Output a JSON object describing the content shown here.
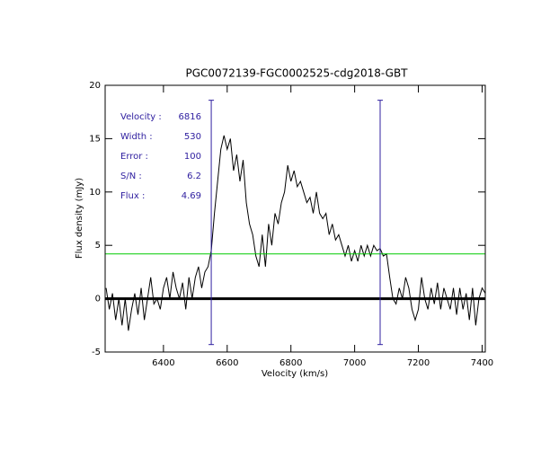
{
  "chart_data": {
    "type": "line",
    "title": "PGC0072139-FGC0002525-cdg2018-GBT",
    "xlabel": "Velocity (km/s)",
    "ylabel": "Flux density (mJy)",
    "color": "#000000",
    "x": [
      6220,
      6230,
      6240,
      6250,
      6260,
      6270,
      6280,
      6290,
      6300,
      6310,
      6320,
      6330,
      6340,
      6350,
      6360,
      6370,
      6380,
      6390,
      6400,
      6410,
      6420,
      6430,
      6440,
      6450,
      6460,
      6470,
      6480,
      6490,
      6500,
      6510,
      6520,
      6530,
      6540,
      6550,
      6560,
      6570,
      6580,
      6590,
      6600,
      6610,
      6620,
      6630,
      6640,
      6650,
      6660,
      6670,
      6680,
      6690,
      6700,
      6710,
      6720,
      6730,
      6740,
      6750,
      6760,
      6770,
      6780,
      6790,
      6800,
      6810,
      6820,
      6830,
      6840,
      6850,
      6860,
      6870,
      6880,
      6890,
      6900,
      6910,
      6920,
      6930,
      6940,
      6950,
      6960,
      6970,
      6980,
      6990,
      7000,
      7010,
      7020,
      7030,
      7040,
      7050,
      7060,
      7070,
      7080,
      7090,
      7100,
      7110,
      7120,
      7130,
      7140,
      7150,
      7160,
      7170,
      7180,
      7190,
      7200,
      7210,
      7220,
      7230,
      7240,
      7250,
      7260,
      7270,
      7280,
      7290,
      7300,
      7310,
      7320,
      7330,
      7340,
      7350,
      7360,
      7370,
      7380,
      7390,
      7400,
      7410
    ],
    "values": [
      1,
      -1,
      0.5,
      -2,
      0,
      -2.5,
      0,
      -3,
      -1,
      0.5,
      -1.5,
      1,
      -2,
      0,
      2,
      -0.5,
      0,
      -1,
      1,
      2,
      0,
      2.5,
      1,
      0,
      1.5,
      -1,
      2,
      0,
      2,
      3,
      1,
      2.5,
      3,
      4.5,
      8,
      11,
      14,
      15.3,
      14,
      15,
      12,
      13.5,
      11,
      13,
      9,
      7,
      6,
      4,
      3,
      6,
      3,
      7,
      5,
      8,
      7,
      9,
      10,
      12.5,
      11,
      12,
      10.5,
      11,
      10,
      9,
      9.5,
      8,
      10,
      8,
      7.5,
      8,
      6,
      7,
      5.5,
      6,
      5,
      4,
      5,
      3.5,
      4.5,
      3.5,
      5,
      4,
      5,
      4,
      5,
      4.5,
      4.7,
      4,
      4.2,
      2,
      0,
      -0.5,
      1,
      0,
      2,
      1,
      -1,
      -2,
      -1,
      2,
      0,
      -1,
      1,
      -0.5,
      1.5,
      -1,
      1,
      0,
      -1,
      1,
      -1.5,
      1,
      -1,
      0.5,
      -2,
      1,
      -2.5,
      0,
      1,
      0.5
    ],
    "xlim": [
      6217,
      7410
    ],
    "ylim": [
      -5,
      20
    ],
    "xticks": [
      6400,
      6600,
      6800,
      7000,
      7200,
      7400
    ],
    "yticks": [
      -5,
      0,
      5,
      10,
      15,
      20
    ],
    "hlines": [
      {
        "value": 0,
        "color": "#000000",
        "width": 3
      },
      {
        "value": 4.2,
        "color": "#00cc00",
        "width": 1
      }
    ],
    "vlines": [
      {
        "value": 6550,
        "ymin": -4.3,
        "ymax": 18.6,
        "color": "#3020a0"
      },
      {
        "value": 7080,
        "ymin": -4.3,
        "ymax": 18.6,
        "color": "#3020a0"
      }
    ],
    "annotations": [
      {
        "label": "Velocity :",
        "value": 6816
      },
      {
        "label": "Width :",
        "value": 530
      },
      {
        "label": "Error :",
        "value": 100
      },
      {
        "label": "S/N :",
        "value": 6.2
      },
      {
        "label": "Flux :",
        "value": 4.69
      }
    ],
    "annotation_color": "#3020a0"
  }
}
